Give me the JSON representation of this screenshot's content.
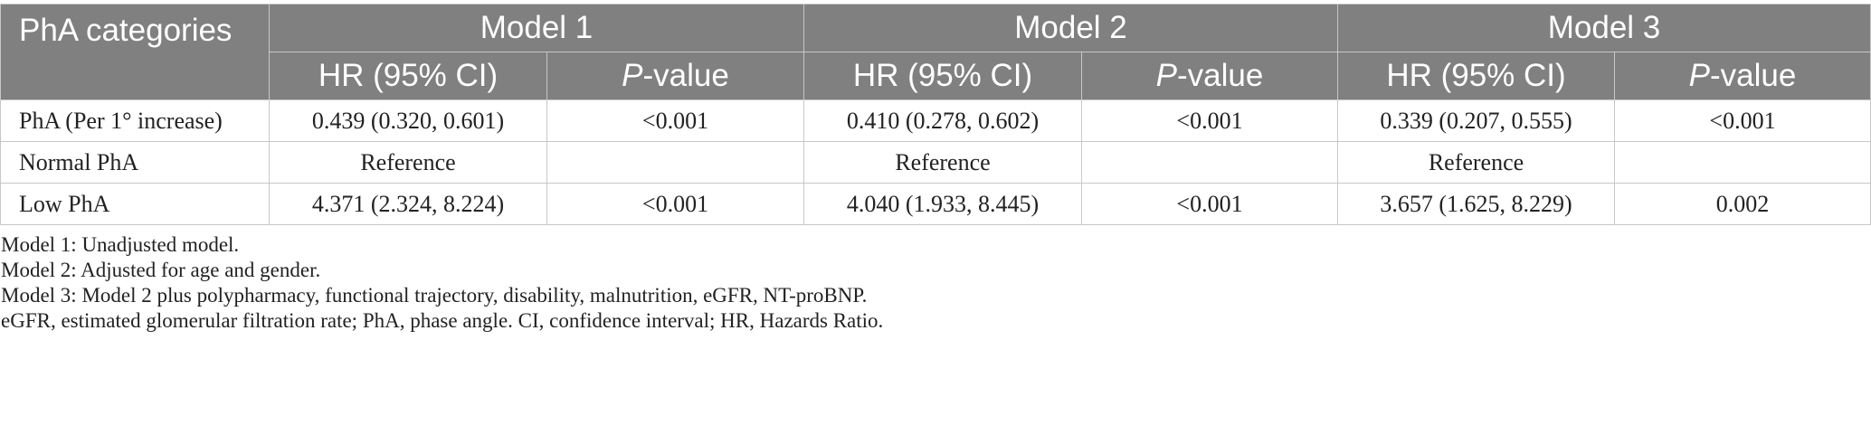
{
  "table": {
    "row_header": "PhA categories",
    "groups": [
      "Model 1",
      "Model 2",
      "Model 3"
    ],
    "subheaders": {
      "hr": "HR (95% CI)",
      "p_italic": "P",
      "p_rest": "-value"
    },
    "rows": [
      {
        "label": "PhA (Per 1° increase)",
        "cells": [
          "0.439 (0.320, 0.601)",
          "<0.001",
          "0.410 (0.278, 0.602)",
          "<0.001",
          "0.339 (0.207, 0.555)",
          "<0.001"
        ]
      },
      {
        "label": "Normal PhA",
        "cells": [
          "Reference",
          "",
          "Reference",
          "",
          "Reference",
          ""
        ]
      },
      {
        "label": "Low PhA",
        "cells": [
          "4.371 (2.324, 8.224)",
          "<0.001",
          "4.040 (1.933, 8.445)",
          "<0.001",
          "3.657 (1.625, 8.229)",
          "0.002"
        ]
      }
    ]
  },
  "notes": [
    "Model 1: Unadjusted model.",
    "Model 2: Adjusted for age and gender.",
    "Model 3: Model 2 plus polypharmacy, functional trajectory, disability, malnutrition, eGFR, NT-proBNP.",
    "eGFR, estimated glomerular filtration rate; PhA, phase angle. CI, confidence interval; HR, Hazards Ratio."
  ]
}
